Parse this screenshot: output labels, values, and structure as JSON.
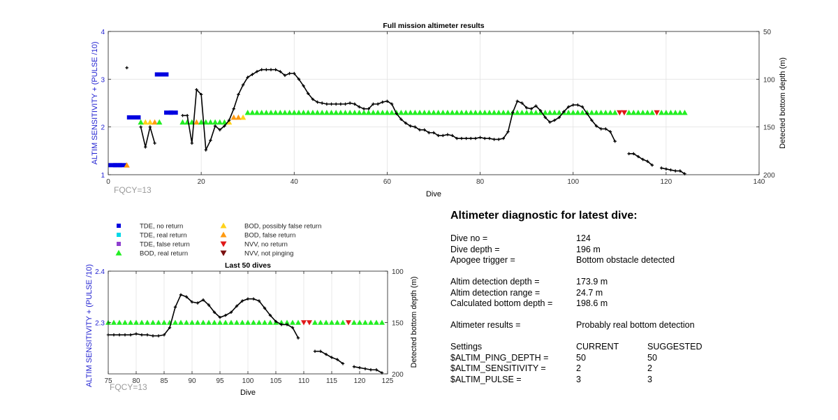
{
  "colors": {
    "axis_blue": "#1f1fd0",
    "fqcy_gray": "#9a9a9a",
    "trace": "#000000",
    "tde_no_return": "#0000e0",
    "tde_real_return": "#00d8e8",
    "tde_false_return": "#8f3fcf",
    "bod_real_return": "#22ee22",
    "bod_possibly_false_return": "#ffd21a",
    "bod_false_return": "#ff9a10",
    "nvv_no_return": "#e01818",
    "nvv_not_pinging": "#7a1010"
  },
  "legend": {
    "items": [
      {
        "label": "TDE, no return",
        "marker": "square",
        "color_key": "tde_no_return"
      },
      {
        "label": "TDE, real return",
        "marker": "square",
        "color_key": "tde_real_return"
      },
      {
        "label": "TDE, false return",
        "marker": "square",
        "color_key": "tde_false_return"
      },
      {
        "label": "BOD, real return",
        "marker": "triangle-up",
        "color_key": "bod_real_return"
      },
      {
        "label": "BOD, possibly false return",
        "marker": "triangle-up",
        "color_key": "bod_possibly_false_return"
      },
      {
        "label": "BOD, false return",
        "marker": "triangle-up",
        "color_key": "bod_false_return"
      },
      {
        "label": "NVV, no return",
        "marker": "triangle-down",
        "color_key": "nvv_no_return"
      },
      {
        "label": "NVV, not pinging",
        "marker": "triangle-down",
        "color_key": "nvv_not_pinging"
      }
    ]
  },
  "diagnostic": {
    "title": "Altimeter diagnostic for latest dive:",
    "dive_no_label": "Dive no =",
    "dive_no": "124",
    "dive_depth_label": "Dive depth =",
    "dive_depth": "196 m",
    "apogee_label": "Apogee trigger =",
    "apogee": "Bottom obstacle detected",
    "det_depth_label": "Altim detection depth =",
    "det_depth": "173.9 m",
    "det_range_label": "Altim detection range =",
    "det_range": "24.7 m",
    "calc_depth_label": "Calculated bottom depth =",
    "calc_depth": "198.6 m",
    "results_label": "Altimeter results =",
    "results": "Probably real bottom detection",
    "settings_label": "Settings",
    "current_label": "CURRENT",
    "suggested_label": "SUGGESTED",
    "settings": [
      {
        "name": "$ALTIM_PING_DEPTH =",
        "current": "50",
        "suggested": "50"
      },
      {
        "name": "$ALTIM_SENSITIVITY =",
        "current": "2",
        "suggested": "2"
      },
      {
        "name": "$ALTIM_PULSE =",
        "current": "3",
        "suggested": "3"
      }
    ]
  },
  "chart_data": [
    {
      "type": "scatter",
      "title": "Full mission altimeter results",
      "xlabel": "Dive",
      "ylabel": "ALTIM SENSITIVITY + (PULSE /10)",
      "y2label": "Detected bottom depth (m)",
      "annotation": "FQCY=13",
      "xlim": [
        0,
        140
      ],
      "ylim": [
        1,
        4
      ],
      "y2lim": [
        200,
        50
      ],
      "y2_reversed": true,
      "grid": true,
      "xticks": [
        0,
        20,
        40,
        60,
        80,
        100,
        120,
        140
      ],
      "yticks": [
        1,
        2,
        3,
        4
      ],
      "y2ticks": [
        50,
        100,
        150,
        200
      ],
      "markers": [
        {
          "category": "tde_no_return",
          "shape": "square",
          "points": [
            [
              1,
              1.2
            ],
            [
              2,
              1.2
            ],
            [
              3,
              1.2
            ],
            [
              5,
              2.2
            ],
            [
              6,
              2.2
            ],
            [
              11,
              3.1
            ],
            [
              12,
              3.1
            ],
            [
              13,
              2.3
            ],
            [
              14,
              2.3
            ]
          ]
        },
        {
          "category": "bod_possibly_false_return",
          "shape": "triangle-up",
          "points": [
            [
              8,
              2.1
            ],
            [
              9,
              2.1
            ],
            [
              26,
              2.1
            ],
            [
              29,
              2.2
            ]
          ]
        },
        {
          "category": "bod_false_return",
          "shape": "triangle-up",
          "points": [
            [
              4,
              1.2
            ],
            [
              10,
              2.1
            ],
            [
              19,
              2.1
            ],
            [
              27,
              2.2
            ],
            [
              28,
              2.2
            ]
          ]
        },
        {
          "category": "bod_real_return",
          "shape": "triangle-up",
          "points": [
            [
              7,
              2.1
            ],
            [
              11,
              2.1
            ],
            [
              16,
              2.1
            ],
            [
              17,
              2.1
            ],
            [
              18,
              2.1
            ],
            [
              20,
              2.1
            ],
            [
              21,
              2.1
            ],
            [
              22,
              2.1
            ],
            [
              23,
              2.1
            ],
            [
              24,
              2.1
            ],
            [
              25,
              2.1
            ]
          ],
          "line_from": 30,
          "line_to": 124,
          "line_value": 2.3,
          "line_skip": [
            110,
            111,
            118
          ]
        },
        {
          "category": "nvv_no_return",
          "shape": "triangle-down",
          "points": [
            [
              110,
              2.3
            ],
            [
              111,
              2.3
            ],
            [
              118,
              2.3
            ]
          ]
        }
      ],
      "depth_series": [
        [
          [
            4,
            88
          ]
        ],
        [
          [
            7,
            150
          ],
          [
            8,
            171
          ],
          [
            9,
            150
          ],
          [
            10,
            167
          ]
        ],
        [
          [
            16,
            138
          ],
          [
            17,
            138
          ],
          [
            18,
            167
          ],
          [
            19,
            111
          ],
          [
            20,
            116
          ],
          [
            21,
            174
          ],
          [
            22,
            164
          ],
          [
            23,
            149
          ],
          [
            24,
            153
          ],
          [
            25,
            149
          ],
          [
            26,
            143
          ],
          [
            27,
            131
          ],
          [
            28,
            116
          ],
          [
            29,
            106
          ],
          [
            30,
            98
          ],
          [
            31,
            95
          ],
          [
            32,
            92
          ],
          [
            33,
            90
          ],
          [
            34,
            90
          ],
          [
            35,
            90
          ],
          [
            36,
            90
          ],
          [
            37,
            92
          ],
          [
            38,
            96
          ],
          [
            39,
            94
          ],
          [
            40,
            94
          ],
          [
            41,
            100
          ],
          [
            42,
            107
          ],
          [
            43,
            115
          ],
          [
            44,
            121
          ],
          [
            45,
            124
          ],
          [
            46,
            125
          ],
          [
            47,
            126
          ],
          [
            48,
            126
          ],
          [
            49,
            126
          ],
          [
            50,
            126
          ],
          [
            51,
            126
          ],
          [
            52,
            125
          ],
          [
            53,
            126
          ],
          [
            54,
            129
          ],
          [
            55,
            131
          ],
          [
            56,
            131
          ],
          [
            57,
            126
          ],
          [
            58,
            126
          ],
          [
            59,
            124
          ],
          [
            60,
            123
          ],
          [
            61,
            126
          ],
          [
            62,
            136
          ],
          [
            63,
            142
          ],
          [
            64,
            146
          ],
          [
            65,
            149
          ],
          [
            66,
            150
          ],
          [
            67,
            153
          ],
          [
            68,
            153
          ],
          [
            69,
            156
          ],
          [
            70,
            156
          ],
          [
            71,
            159
          ],
          [
            72,
            159
          ],
          [
            73,
            158
          ],
          [
            74,
            159
          ],
          [
            75,
            162
          ],
          [
            76,
            162
          ],
          [
            77,
            162
          ],
          [
            78,
            162
          ],
          [
            79,
            162
          ],
          [
            80,
            161
          ],
          [
            81,
            162
          ],
          [
            82,
            162
          ],
          [
            83,
            163
          ],
          [
            84,
            163
          ],
          [
            85,
            162
          ],
          [
            86,
            155
          ],
          [
            87,
            135
          ],
          [
            88,
            123
          ],
          [
            89,
            125
          ],
          [
            90,
            130
          ],
          [
            91,
            131
          ],
          [
            92,
            128
          ],
          [
            93,
            133
          ],
          [
            94,
            140
          ],
          [
            95,
            145
          ],
          [
            96,
            143
          ],
          [
            97,
            140
          ],
          [
            98,
            134
          ],
          [
            99,
            129
          ],
          [
            100,
            127
          ],
          [
            101,
            127
          ],
          [
            102,
            129
          ],
          [
            103,
            136
          ],
          [
            104,
            143
          ],
          [
            105,
            149
          ],
          [
            106,
            152
          ],
          [
            107,
            152
          ],
          [
            108,
            155
          ],
          [
            109,
            165
          ]
        ],
        [
          [
            112,
            178
          ],
          [
            113,
            178
          ],
          [
            114,
            181
          ],
          [
            115,
            184
          ],
          [
            116,
            186
          ],
          [
            117,
            190
          ]
        ],
        [
          [
            119,
            193
          ],
          [
            120,
            194
          ],
          [
            121,
            195
          ],
          [
            122,
            196
          ],
          [
            123,
            196
          ],
          [
            124,
            199
          ]
        ]
      ]
    },
    {
      "type": "scatter",
      "title": "Last 50 dives",
      "xlabel": "Dive",
      "ylabel": "ALTIM SENSITIVITY + (PULSE /10)",
      "y2label": "Detected bottom depth (m)",
      "annotation": "FQCY=13",
      "xlim": [
        75,
        125
      ],
      "ylim": [
        2.2,
        2.4
      ],
      "y2lim": [
        200,
        100
      ],
      "y2_reversed": true,
      "grid": true,
      "xticks": [
        75,
        80,
        85,
        90,
        95,
        100,
        105,
        110,
        115,
        120,
        125
      ],
      "yticks": [
        2.3,
        2.4
      ],
      "y2ticks": [
        100,
        150,
        200
      ],
      "markers": [
        {
          "category": "bod_real_return",
          "shape": "triangle-up",
          "line_from": 75,
          "line_to": 124,
          "line_value": 2.3,
          "line_skip": [
            110,
            111,
            118
          ]
        },
        {
          "category": "nvv_no_return",
          "shape": "triangle-down",
          "points": [
            [
              110,
              2.3
            ],
            [
              111,
              2.3
            ],
            [
              118,
              2.3
            ]
          ]
        }
      ],
      "depth_series": [
        [
          [
            75,
            162
          ],
          [
            76,
            162
          ],
          [
            77,
            162
          ],
          [
            78,
            162
          ],
          [
            79,
            162
          ],
          [
            80,
            161
          ],
          [
            81,
            162
          ],
          [
            82,
            162
          ],
          [
            83,
            163
          ],
          [
            84,
            163
          ],
          [
            85,
            162
          ],
          [
            86,
            155
          ],
          [
            87,
            135
          ],
          [
            88,
            123
          ],
          [
            89,
            125
          ],
          [
            90,
            130
          ],
          [
            91,
            131
          ],
          [
            92,
            128
          ],
          [
            93,
            133
          ],
          [
            94,
            140
          ],
          [
            95,
            145
          ],
          [
            96,
            143
          ],
          [
            97,
            140
          ],
          [
            98,
            134
          ],
          [
            99,
            129
          ],
          [
            100,
            127
          ],
          [
            101,
            127
          ],
          [
            102,
            129
          ],
          [
            103,
            136
          ],
          [
            104,
            143
          ],
          [
            105,
            149
          ],
          [
            106,
            152
          ],
          [
            107,
            152
          ],
          [
            108,
            155
          ],
          [
            109,
            165
          ]
        ],
        [
          [
            112,
            178
          ],
          [
            113,
            178
          ],
          [
            114,
            181
          ],
          [
            115,
            184
          ],
          [
            116,
            186
          ],
          [
            117,
            190
          ]
        ],
        [
          [
            119,
            193
          ],
          [
            120,
            194
          ],
          [
            121,
            195
          ],
          [
            122,
            196
          ],
          [
            123,
            196
          ],
          [
            124,
            199
          ]
        ]
      ]
    }
  ]
}
